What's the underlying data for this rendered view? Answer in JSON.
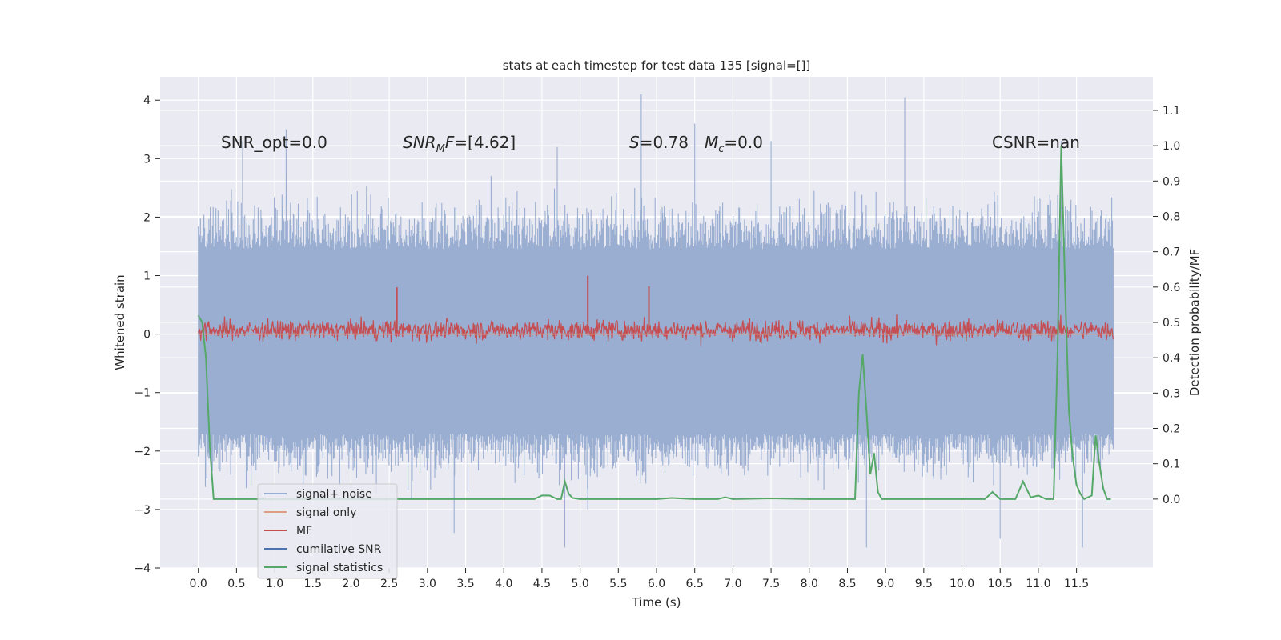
{
  "chart_data": {
    "type": "line",
    "title": "stats at each timestep for test data 135 [signal=[]]",
    "xlabel": "Time (s)",
    "ylabel": "Whitened strain",
    "y2label": "Detection probability/MF",
    "xlim": [
      -0.5,
      12.5
    ],
    "ylim": [
      -4.0,
      4.4
    ],
    "y2lim": [
      -0.195,
      1.195
    ],
    "grid": true,
    "legend_position": "lower-left",
    "x_ticks": [
      0.0,
      0.5,
      1.0,
      1.5,
      2.0,
      2.5,
      3.0,
      3.5,
      4.0,
      4.5,
      5.0,
      5.5,
      6.0,
      6.5,
      7.0,
      7.5,
      8.0,
      8.5,
      9.0,
      9.5,
      10.0,
      10.5,
      11.0,
      11.5
    ],
    "x_tick_labels": [
      "0.0",
      "0.5",
      "1.0",
      "1.5",
      "2.0",
      "2.5",
      "3.0",
      "3.5",
      "4.0",
      "4.5",
      "5.0",
      "5.5",
      "6.0",
      "6.5",
      "7.0",
      "7.5",
      "8.0",
      "8.5",
      "9.0",
      "9.5",
      "10.0",
      "10.5",
      "11.0",
      "11.5"
    ],
    "y_ticks": [
      4,
      3,
      2,
      1,
      0,
      -1,
      -2,
      -3,
      -4
    ],
    "y_tick_labels": [
      "4",
      "3",
      "2",
      "1",
      "0",
      "−1",
      "−2",
      "−3",
      "−4"
    ],
    "y2_ticks": [
      1.1,
      1.0,
      0.9,
      0.8,
      0.7,
      0.6,
      0.5,
      0.4,
      0.3,
      0.2,
      0.1,
      0.0
    ],
    "y2_tick_labels": [
      "1.1",
      "1.0",
      "0.9",
      "0.8",
      "0.7",
      "0.6",
      "0.5",
      "0.4",
      "0.3",
      "0.2",
      "0.1",
      "0.0"
    ],
    "annotations": [
      {
        "text": "SNR_opt=0.0",
        "x": 0.2,
        "y": 3.3
      },
      {
        "text": "SNR_MF=[4.62]",
        "x": 2.6,
        "y": 3.3
      },
      {
        "text": "S=0.78",
        "x": 5.6,
        "y": 3.3
      },
      {
        "text": "M_c=0.0",
        "x": 6.6,
        "y": 3.3
      },
      {
        "text": "CSNR=nan",
        "x": 10.4,
        "y": 3.3
      }
    ],
    "series": [
      {
        "name": "signal+ noise",
        "color": "#9aaed2",
        "axis": "left",
        "range_x": [
          0.0,
          11.98
        ],
        "core_band": [
          -1.7,
          1.45
        ],
        "typical_envelope": [
          -2.6,
          2.6
        ],
        "peaks": [
          [
            0.58,
            3.3
          ],
          [
            1.15,
            3.5
          ],
          [
            4.7,
            3.2
          ],
          [
            5.8,
            4.1
          ],
          [
            6.5,
            3.6
          ],
          [
            7.5,
            3.3
          ],
          [
            9.25,
            4.05
          ],
          [
            11.3,
            3.3
          ],
          [
            5.1,
            -3.0
          ],
          [
            3.35,
            -3.4
          ],
          [
            4.8,
            -3.65
          ],
          [
            8.75,
            -3.65
          ],
          [
            10.5,
            -3.5
          ],
          [
            11.58,
            -3.65
          ]
        ]
      },
      {
        "name": "signal only",
        "color": "#dd9f83",
        "axis": "left",
        "x": [
          0.0,
          11.98
        ],
        "values": [
          0.0,
          0.0
        ]
      },
      {
        "name": "MF",
        "color": "#c44e52",
        "axis": "left",
        "range_x": [
          0.0,
          11.98
        ],
        "typical_envelope": [
          -0.35,
          0.55
        ],
        "peaks": [
          [
            2.6,
            0.8
          ],
          [
            5.1,
            1.0
          ],
          [
            5.9,
            0.82
          ]
        ]
      },
      {
        "name": "cumilative SNR",
        "color": "#4c72b0",
        "axis": "right",
        "x": [],
        "values": []
      },
      {
        "name": "signal statistics",
        "color": "#55a868",
        "axis": "right",
        "x": [
          0.0,
          0.05,
          0.1,
          0.15,
          0.2,
          0.3,
          0.5,
          1.0,
          2.0,
          3.0,
          4.0,
          4.4,
          4.5,
          4.6,
          4.7,
          4.75,
          4.8,
          4.85,
          4.9,
          5.0,
          5.5,
          6.0,
          6.2,
          6.3,
          6.5,
          6.8,
          6.9,
          7.0,
          7.5,
          8.0,
          8.5,
          8.6,
          8.65,
          8.7,
          8.75,
          8.8,
          8.85,
          8.9,
          8.95,
          9.0,
          9.5,
          10.0,
          10.2,
          10.3,
          10.4,
          10.5,
          10.6,
          10.7,
          10.8,
          10.9,
          11.0,
          11.1,
          11.2,
          11.25,
          11.3,
          11.35,
          11.4,
          11.45,
          11.5,
          11.55,
          11.6,
          11.7,
          11.75,
          11.8,
          11.85,
          11.9,
          11.95
        ],
        "values": [
          0.52,
          0.5,
          0.4,
          0.15,
          0.0,
          0.0,
          0.0,
          0.0,
          0.0,
          0.0,
          0.0,
          0.0,
          0.01,
          0.01,
          0.0,
          0.0,
          0.05,
          0.015,
          0.003,
          0.0,
          0.0,
          0.0,
          0.003,
          0.002,
          0.0,
          0.0,
          0.005,
          0.0,
          0.002,
          0.0,
          0.0,
          0.0,
          0.3,
          0.41,
          0.25,
          0.07,
          0.13,
          0.02,
          0.0,
          0.0,
          0.0,
          0.0,
          0.0,
          0.0,
          0.02,
          0.0,
          0.0,
          0.0,
          0.05,
          0.005,
          0.01,
          0.0,
          0.0,
          0.4,
          1.0,
          0.6,
          0.25,
          0.12,
          0.04,
          0.015,
          0.0,
          0.01,
          0.18,
          0.1,
          0.03,
          0.0,
          0.0
        ]
      }
    ]
  }
}
